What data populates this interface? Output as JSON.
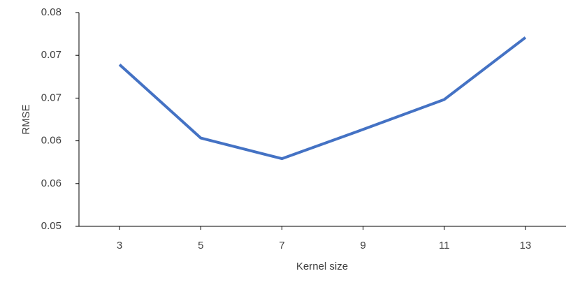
{
  "chart_data": {
    "type": "line",
    "x_label": "Kernel size",
    "y_label": "RMSE",
    "categories": [
      "3",
      "5",
      "7",
      "9",
      "11",
      "13"
    ],
    "series": [
      {
        "name": "RMSE",
        "color": "#4472c4",
        "values": [
          0.0727,
          0.0624,
          0.0595,
          0.0636,
          0.0678,
          0.0765
        ]
      }
    ],
    "ylim": [
      0.05,
      0.08
    ],
    "yticks": [
      0.05,
      {
        "value": 0.056,
        "label": "0.06"
      },
      {
        "value": 0.062,
        "label": "0.06"
      },
      {
        "value": 0.068,
        "label": "0.07"
      },
      {
        "value": 0.074,
        "label": "0.07"
      },
      0.08
    ],
    "grid": false
  }
}
